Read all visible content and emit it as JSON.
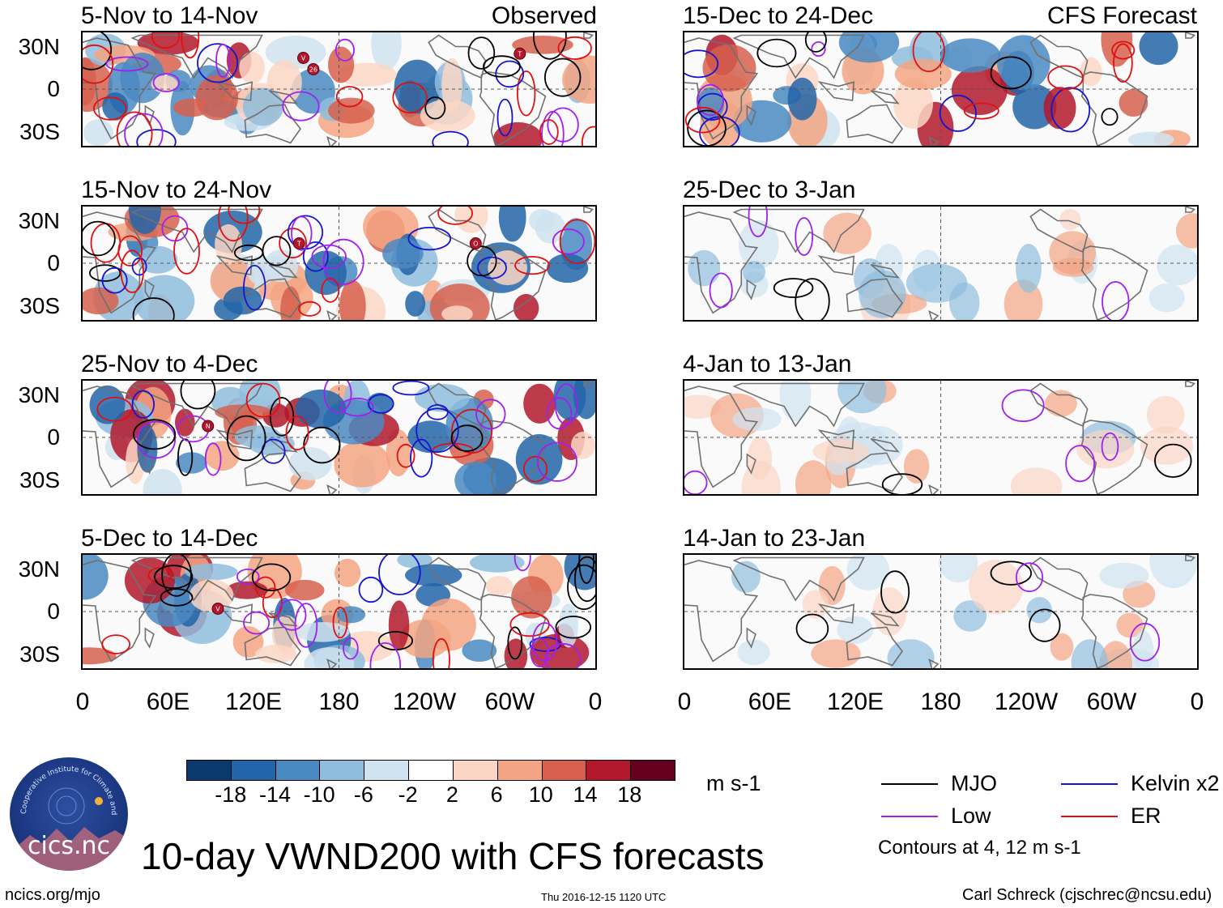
{
  "chart_data": {
    "type": "heatmap",
    "title": "10-day VWND200 with CFS forecasts",
    "variable": "VWND200",
    "units": "m s-1",
    "column_headers": {
      "left": "Observed",
      "right": "CFS Forecast"
    },
    "panels": [
      {
        "period": "5-Nov to 14-Nov",
        "source": "Observed",
        "storms": [
          "V",
          "26",
          "T"
        ]
      },
      {
        "period": "15-Nov to 24-Nov",
        "source": "Observed",
        "storms": [
          "T",
          "O"
        ]
      },
      {
        "period": "25-Nov to 4-Dec",
        "source": "Observed",
        "storms": [
          "N"
        ]
      },
      {
        "period": "5-Dec to 14-Dec",
        "source": "Observed",
        "storms": [
          "V"
        ]
      },
      {
        "period": "15-Dec to 24-Dec",
        "source": "CFS Forecast",
        "storms": []
      },
      {
        "period": "25-Dec to 3-Jan",
        "source": "CFS Forecast",
        "storms": []
      },
      {
        "period": "4-Jan to 13-Jan",
        "source": "CFS Forecast",
        "storms": []
      },
      {
        "period": "14-Jan to 23-Jan",
        "source": "CFS Forecast",
        "storms": []
      }
    ],
    "lat_ticks": [
      "30N",
      "0",
      "30S"
    ],
    "lat_range": [
      -40,
      40
    ],
    "lon_ticks": [
      "0",
      "60E",
      "120E",
      "180",
      "120W",
      "60W",
      "0"
    ],
    "lon_range": [
      0,
      360
    ],
    "colorbar": {
      "levels": [
        "-18",
        "-14",
        "-10",
        "-6",
        "-2",
        "2",
        "6",
        "10",
        "14",
        "18"
      ],
      "colors": [
        "#0b3b6e",
        "#2265a8",
        "#4a8ac2",
        "#8fbddd",
        "#cfe3f0",
        "#ffffff",
        "#fbd6c4",
        "#f3a483",
        "#d6604d",
        "#b2182b",
        "#67001f"
      ]
    },
    "contours": {
      "legend": [
        {
          "label": "MJO",
          "color": "#000000"
        },
        {
          "label": "Kelvin x2",
          "color": "#1515d0"
        },
        {
          "label": "Low",
          "color": "#a020f0"
        },
        {
          "label": "ER",
          "color": "#e01010"
        }
      ],
      "note": "Contours at 4, 12 m s-1"
    }
  },
  "branding": {
    "logo_text": "cics.nc",
    "logo_ring": "Cooperative Institute for Climate and Satellites",
    "url": "ncics.org/mjo",
    "timestamp": "Thu 2016-12-15 1120 UTC",
    "author": "Carl Schreck (cjschrec@ncsu.edu)"
  }
}
